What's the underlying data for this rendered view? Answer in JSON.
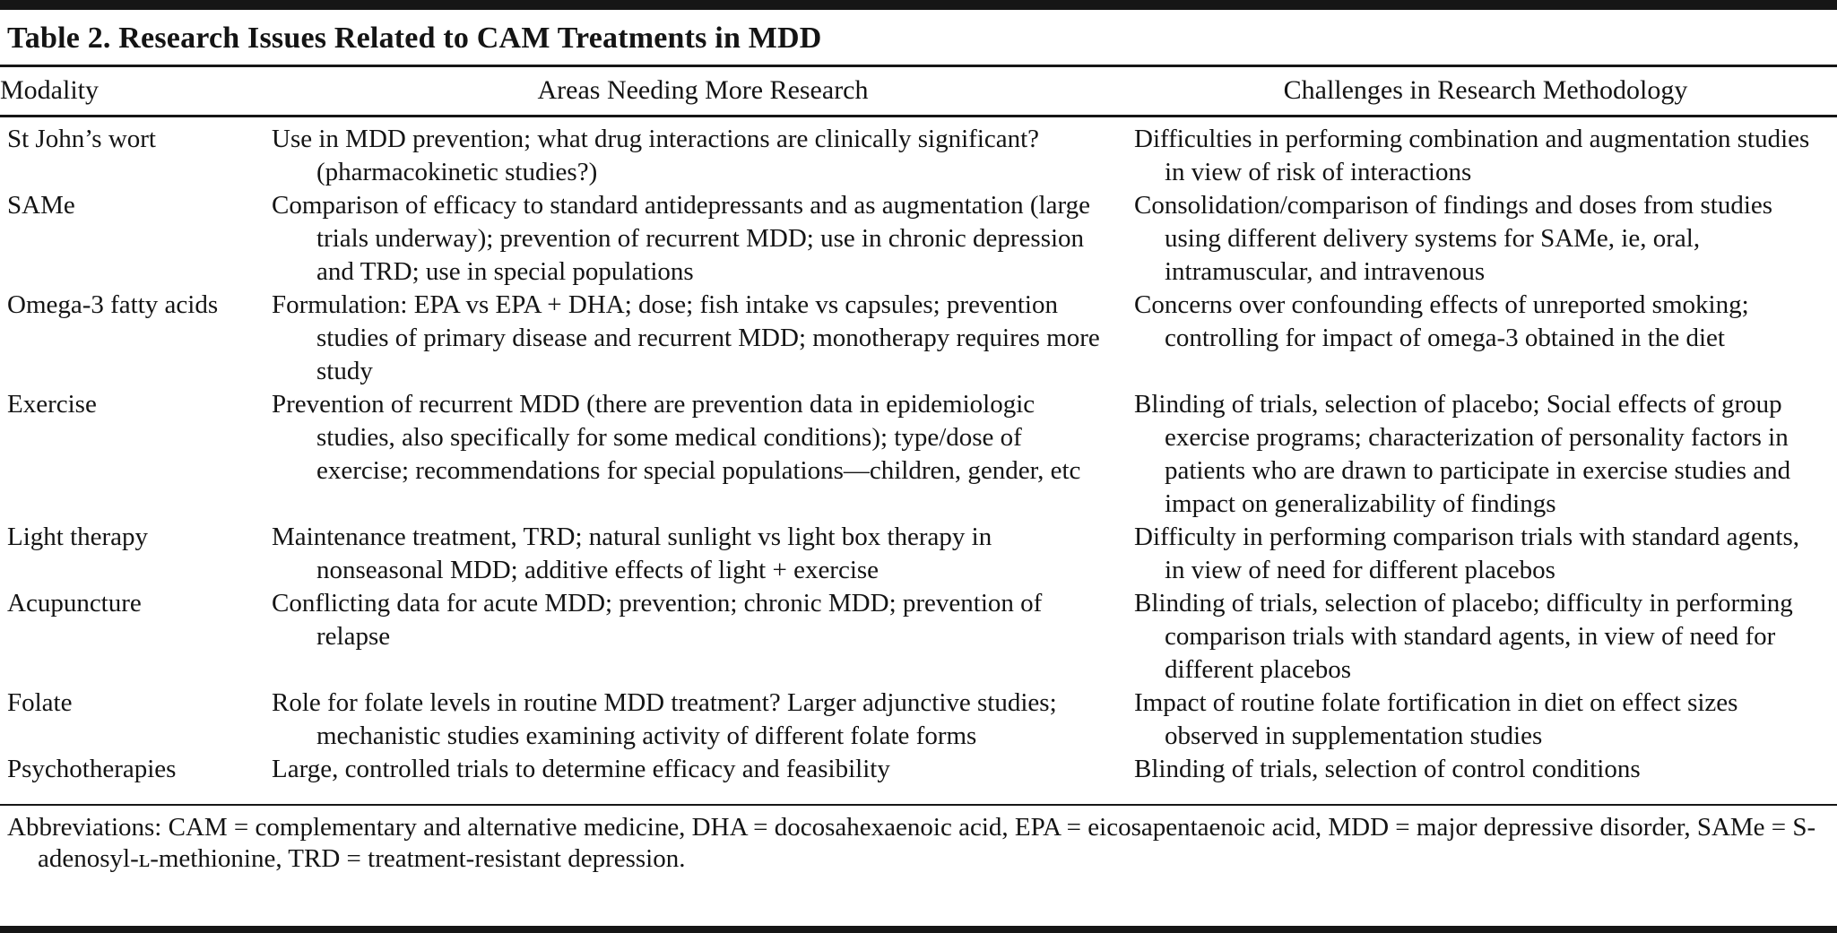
{
  "table": {
    "title": "Table 2. Research Issues Related to CAM Treatments in MDD",
    "columns": [
      "Modality",
      "Areas Needing More Research",
      "Challenges in Research Methodology"
    ],
    "rows": [
      {
        "modality": "St John’s wort",
        "research": "Use in MDD prevention; what drug interactions are clinically significant? (pharmacokinetic studies?)",
        "challenges": "Difficulties in performing combination and augmentation studies in view of risk of interactions"
      },
      {
        "modality": "SAMe",
        "research": "Comparison of efficacy to standard antidepressants and as augmentation (large trials underway); prevention of recurrent MDD; use in chronic depression and TRD; use in special populations",
        "challenges": "Consolidation/comparison of findings and doses from studies using different delivery systems for SAMe, ie, oral, intramuscular, and intravenous"
      },
      {
        "modality": "Omega-3 fatty acids",
        "research": "Formulation: EPA vs EPA + DHA; dose; fish intake vs capsules; prevention studies of primary disease and recurrent MDD; monotherapy requires more study",
        "challenges": "Concerns over confounding effects of unreported smoking; controlling for impact of omega-3 obtained in the diet"
      },
      {
        "modality": "Exercise",
        "research": "Prevention of recurrent MDD (there are prevention data in epidemiologic studies, also specifically for some medical conditions); type/dose of exercise; recommendations for special populations—children, gender, etc",
        "challenges": "Blinding of trials, selection of placebo; Social effects of group exercise programs; characterization of personality factors in patients who are drawn to participate in exercise studies and impact on generalizability of findings"
      },
      {
        "modality": "Light therapy",
        "research": "Maintenance treatment, TRD; natural sunlight vs light box therapy in nonseasonal MDD; additive effects of light + exercise",
        "challenges": "Difficulty in performing comparison trials with standard agents, in view of need for different placebos"
      },
      {
        "modality": "Acupuncture",
        "research": "Conflicting data for acute MDD; prevention; chronic MDD; prevention of relapse",
        "challenges": "Blinding of trials, selection of placebo; difficulty in performing comparison trials with standard agents, in view of need for different placebos"
      },
      {
        "modality": "Folate",
        "research": "Role for folate levels in routine MDD treatment? Larger adjunctive studies; mechanistic studies examining activity of different folate forms",
        "challenges": "Impact of routine folate fortification in diet on effect sizes observed in supplementation studies"
      },
      {
        "modality": "Psychotherapies",
        "research": "Large, controlled trials to determine efficacy and feasibility",
        "challenges": "Blinding of trials, selection of control conditions"
      }
    ],
    "footnote": "Abbreviations: CAM = complementary and alternative medicine, DHA = docosahexaenoic acid, EPA = eicosapentaenoic acid, MDD = major depressive disorder, SAMe = S-adenosyl-ʟ-methionine, TRD = treatment-resistant depression."
  }
}
